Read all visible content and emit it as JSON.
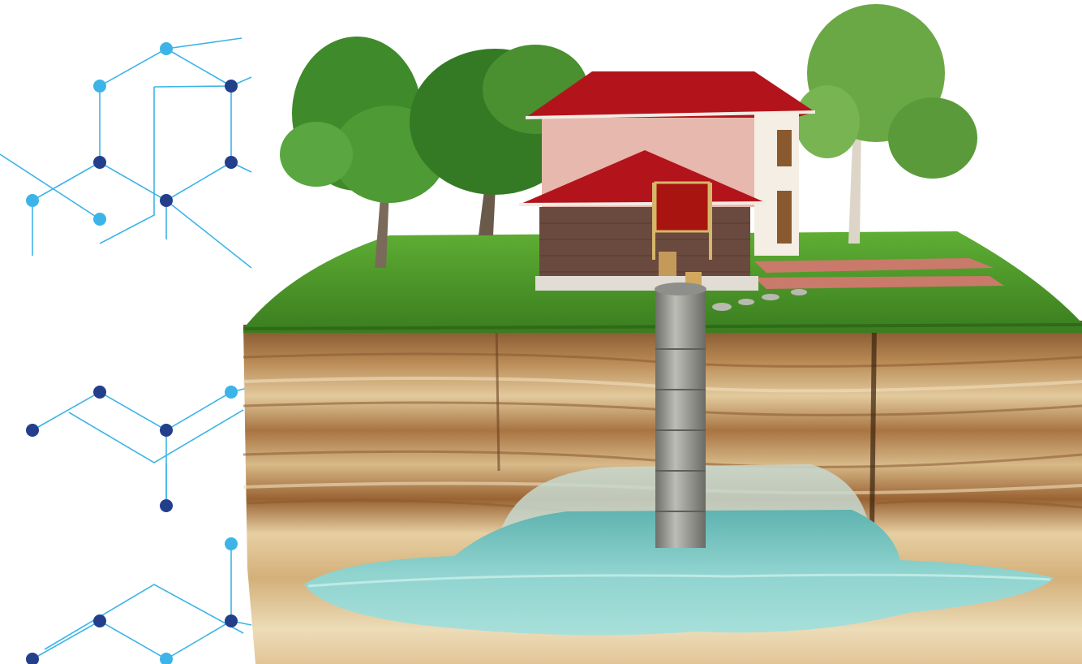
{
  "palette": {
    "network_line": "#3db4e8",
    "node_light": "#3db4e8",
    "node_dark": "#233f8c",
    "grass": "#4f9a2b",
    "grass_dark": "#3a7d1f",
    "soil_dark": "#8a5a30",
    "soil_mid": "#b98a55",
    "soil_light": "#e2c99c",
    "sand": "#e9d6ae",
    "water": "#8fd3cf",
    "water_dark": "#5fb3b0",
    "roof": "#b3141b",
    "wall": "#e7b8ad",
    "brick": "#6a4a3e",
    "pipe": "#9a9a95",
    "trunk": "#7a6a5a",
    "foliage": "#3f8a2a",
    "foliage_light": "#6aa845"
  },
  "icons": [
    "molecule-network-decoration",
    "well-cross-section-illustration",
    "house-icon",
    "tree-icon",
    "well-pipe-icon",
    "aquifer-water-icon"
  ]
}
